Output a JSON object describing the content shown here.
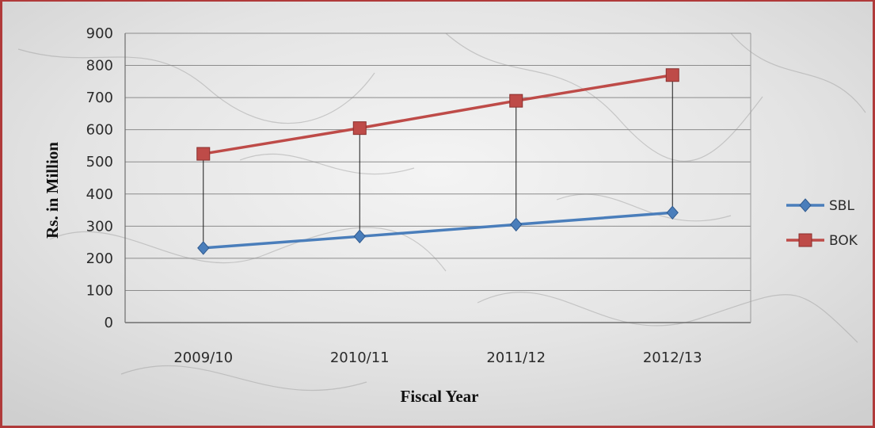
{
  "chart_data": {
    "type": "line",
    "categories": [
      "2009/10",
      "2010/11",
      "2011/12",
      "2012/13"
    ],
    "series": [
      {
        "name": "SBL",
        "values": [
          232,
          268,
          305,
          342
        ],
        "color": "#4a7ebb",
        "marker": "diamond"
      },
      {
        "name": "BOK",
        "values": [
          525,
          605,
          690,
          770
        ],
        "color": "#be4b48",
        "marker": "square"
      }
    ],
    "xlabel": "Fiscal Year",
    "ylabel": "Rs. in Million",
    "ylim": [
      0,
      900
    ],
    "yticks": [
      0,
      100,
      200,
      300,
      400,
      500,
      600,
      700,
      800,
      900
    ],
    "grid": true,
    "drop_lines": true,
    "legend_position": "right"
  }
}
